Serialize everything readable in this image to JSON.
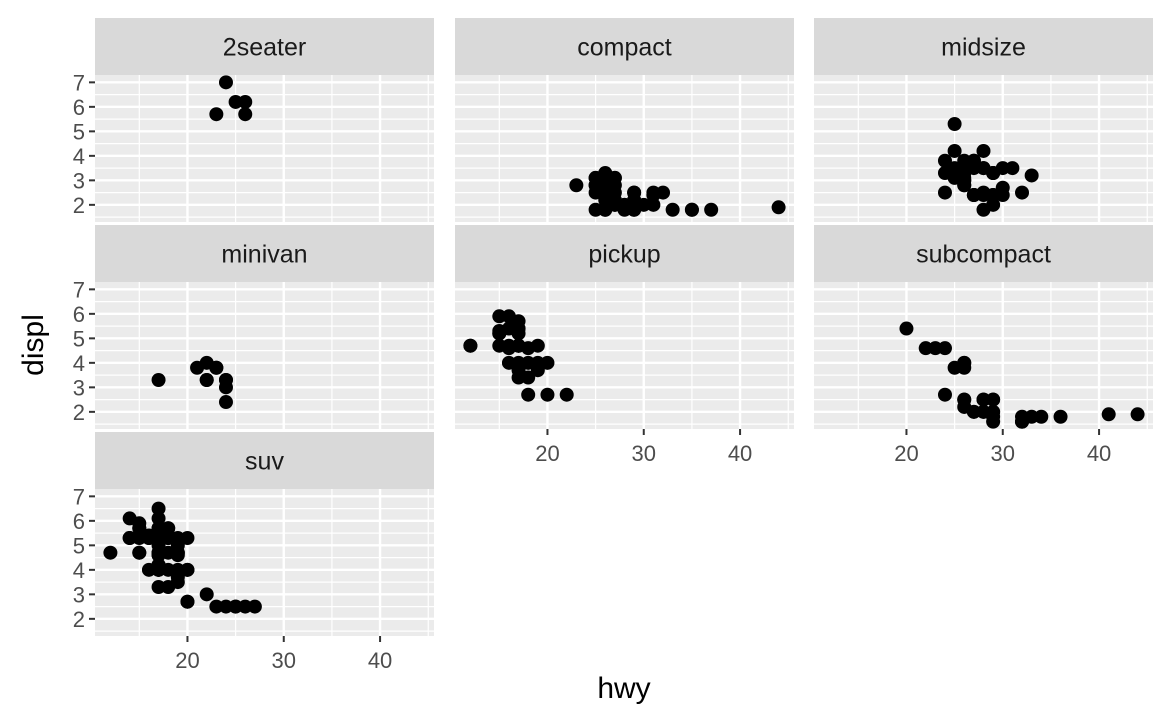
{
  "chart_data": {
    "type": "scatter",
    "xlabel": "hwy",
    "ylabel": "displ",
    "xlim": [
      10.4,
      45.6
    ],
    "ylim": [
      1.3,
      7.3
    ],
    "x_ticks": [
      20,
      30,
      40
    ],
    "y_ticks": [
      2,
      3,
      4,
      5,
      6,
      7
    ],
    "grid": true,
    "facets": [
      {
        "label": "2seater",
        "points": [
          [
            26,
            5.7
          ],
          [
            25,
            6.2
          ],
          [
            26,
            6.2
          ],
          [
            24,
            7.0
          ],
          [
            23,
            5.7
          ]
        ]
      },
      {
        "label": "compact",
        "points": [
          [
            29,
            1.8
          ],
          [
            29,
            1.8
          ],
          [
            31,
            2.0
          ],
          [
            30,
            2.0
          ],
          [
            26,
            2.8
          ],
          [
            26,
            2.8
          ],
          [
            27,
            3.1
          ],
          [
            26,
            1.8
          ],
          [
            25,
            1.8
          ],
          [
            28,
            2.0
          ],
          [
            27,
            2.0
          ],
          [
            25,
            2.8
          ],
          [
            25,
            2.8
          ],
          [
            25,
            3.1
          ],
          [
            25,
            3.1
          ],
          [
            23,
            2.8
          ],
          [
            27,
            3.1
          ],
          [
            29,
            2.2
          ],
          [
            27,
            2.2
          ],
          [
            31,
            2.4
          ],
          [
            31,
            2.4
          ],
          [
            26,
            3.0
          ],
          [
            26,
            3.0
          ],
          [
            26,
            3.3
          ],
          [
            26,
            1.8
          ],
          [
            28,
            1.8
          ],
          [
            29,
            2.0
          ],
          [
            29,
            2.0
          ],
          [
            29,
            2.5
          ],
          [
            29,
            2.5
          ],
          [
            33,
            1.8
          ],
          [
            35,
            1.8
          ],
          [
            37,
            1.8
          ],
          [
            35,
            1.8
          ],
          [
            44,
            1.9
          ],
          [
            29,
            2.0
          ],
          [
            29,
            2.0
          ],
          [
            28,
            2.0
          ],
          [
            29,
            2.0
          ],
          [
            27,
            2.0
          ],
          [
            31,
            2.5
          ],
          [
            32,
            2.5
          ],
          [
            27,
            2.8
          ],
          [
            26,
            2.5
          ],
          [
            26,
            2.2
          ],
          [
            25,
            2.5
          ],
          [
            27,
            2.5
          ]
        ]
      },
      {
        "label": "midsize",
        "points": [
          [
            26,
            2.8
          ],
          [
            25,
            3.1
          ],
          [
            28,
            4.2
          ],
          [
            27,
            2.4
          ],
          [
            27,
            2.4
          ],
          [
            29,
            3.3
          ],
          [
            29,
            3.3
          ],
          [
            28,
            3.5
          ],
          [
            29,
            2.4
          ],
          [
            26,
            3.3
          ],
          [
            26,
            3.5
          ],
          [
            26,
            3.8
          ],
          [
            27,
            3.8
          ],
          [
            25,
            5.3
          ],
          [
            25,
            3.5
          ],
          [
            25,
            3.3
          ],
          [
            26,
            3.0
          ],
          [
            27,
            2.4
          ],
          [
            30,
            2.4
          ],
          [
            32,
            2.5
          ],
          [
            24,
            2.5
          ],
          [
            26,
            2.8
          ],
          [
            26,
            3.1
          ],
          [
            28,
            2.4
          ],
          [
            29,
            2.0
          ],
          [
            29,
            2.4
          ],
          [
            26,
            3.3
          ],
          [
            24,
            3.3
          ],
          [
            27,
            3.5
          ],
          [
            27,
            3.8
          ],
          [
            24,
            3.8
          ],
          [
            30,
            3.5
          ],
          [
            26,
            3.0
          ],
          [
            31,
            3.5
          ],
          [
            28,
            3.5
          ],
          [
            29,
            3.3
          ],
          [
            28,
            2.5
          ],
          [
            25,
            4.2
          ],
          [
            33,
            3.2
          ],
          [
            30,
            2.7
          ],
          [
            28,
            1.8
          ]
        ]
      },
      {
        "label": "minivan",
        "points": [
          [
            17,
            3.3
          ],
          [
            22,
            3.3
          ],
          [
            22,
            3.3
          ],
          [
            21,
            3.8
          ],
          [
            23,
            3.8
          ],
          [
            23,
            3.8
          ],
          [
            22,
            4.0
          ],
          [
            24,
            2.4
          ],
          [
            24,
            3.0
          ],
          [
            24,
            3.3
          ],
          [
            24,
            3.3
          ]
        ]
      },
      {
        "label": "pickup",
        "points": [
          [
            15,
            5.9
          ],
          [
            17,
            4.7
          ],
          [
            16,
            4.7
          ],
          [
            17,
            4.7
          ],
          [
            15,
            5.2
          ],
          [
            17,
            5.2
          ],
          [
            12,
            4.7
          ],
          [
            17,
            5.7
          ],
          [
            16,
            5.9
          ],
          [
            17,
            4.7
          ],
          [
            15,
            4.7
          ],
          [
            17,
            4.7
          ],
          [
            12,
            4.7
          ],
          [
            15,
            5.3
          ],
          [
            16,
            5.4
          ],
          [
            17,
            5.4
          ],
          [
            16,
            4.6
          ],
          [
            17,
            5.4
          ],
          [
            17,
            4.0
          ],
          [
            19,
            4.7
          ],
          [
            17,
            3.4
          ],
          [
            16,
            4.0
          ],
          [
            18,
            4.0
          ],
          [
            18,
            4.6
          ],
          [
            19,
            4.0
          ],
          [
            17,
            3.7
          ],
          [
            15,
            5.2
          ],
          [
            19,
            3.7
          ],
          [
            20,
            4.0
          ],
          [
            22,
            2.7
          ],
          [
            18,
            2.7
          ],
          [
            20,
            2.7
          ],
          [
            18,
            3.4
          ]
        ]
      },
      {
        "label": "subcompact",
        "points": [
          [
            25,
            3.8
          ],
          [
            26,
            3.8
          ],
          [
            26,
            4.0
          ],
          [
            26,
            4.0
          ],
          [
            24,
            4.6
          ],
          [
            23,
            4.6
          ],
          [
            22,
            4.6
          ],
          [
            20,
            5.4
          ],
          [
            24,
            2.7
          ],
          [
            29,
            1.6
          ],
          [
            32,
            1.6
          ],
          [
            32,
            1.6
          ],
          [
            33,
            1.8
          ],
          [
            32,
            1.8
          ],
          [
            32,
            1.6
          ],
          [
            36,
            1.8
          ],
          [
            28,
            2.0
          ],
          [
            29,
            2.0
          ],
          [
            27,
            2.0
          ],
          [
            29,
            2.0
          ],
          [
            29,
            1.8
          ],
          [
            41,
            1.9
          ],
          [
            44,
            1.9
          ],
          [
            29,
            2.5
          ],
          [
            26,
            2.5
          ],
          [
            28,
            2.0
          ],
          [
            29,
            2.5
          ],
          [
            28,
            2.5
          ],
          [
            26,
            2.2
          ],
          [
            26,
            2.5
          ],
          [
            28,
            2.5
          ],
          [
            34,
            1.8
          ],
          [
            27,
            2.0
          ]
        ]
      },
      {
        "label": "suv",
        "points": [
          [
            14,
            5.3
          ],
          [
            14,
            6.1
          ],
          [
            17,
            4.0
          ],
          [
            17,
            4.0
          ],
          [
            15,
            4.7
          ],
          [
            15,
            4.7
          ],
          [
            15,
            5.7
          ],
          [
            17,
            5.3
          ],
          [
            16,
            5.3
          ],
          [
            17,
            4.7
          ],
          [
            15,
            5.9
          ],
          [
            20,
            4.0
          ],
          [
            19,
            4.7
          ],
          [
            17,
            4.7
          ],
          [
            17,
            5.7
          ],
          [
            20,
            5.3
          ],
          [
            19,
            5.3
          ],
          [
            17,
            6.5
          ],
          [
            18,
            3.3
          ],
          [
            17,
            5.3
          ],
          [
            18,
            4.7
          ],
          [
            17,
            5.7
          ],
          [
            12,
            4.7
          ],
          [
            17,
            4.7
          ],
          [
            17,
            4.6
          ],
          [
            17,
            5.4
          ],
          [
            16,
            5.4
          ],
          [
            15,
            5.3
          ],
          [
            18,
            5.3
          ],
          [
            16,
            4.0
          ],
          [
            19,
            4.0
          ],
          [
            19,
            4.6
          ],
          [
            17,
            5.0
          ],
          [
            17,
            4.2
          ],
          [
            17,
            4.2
          ],
          [
            17,
            4.6
          ],
          [
            18,
            5.4
          ],
          [
            18,
            4.0
          ],
          [
            17,
            4.0
          ],
          [
            17,
            3.3
          ],
          [
            20,
            4.0
          ],
          [
            19,
            3.7
          ],
          [
            19,
            3.5
          ],
          [
            22,
            3.0
          ],
          [
            18,
            5.7
          ],
          [
            25,
            2.5
          ],
          [
            24,
            2.5
          ],
          [
            27,
            2.5
          ],
          [
            25,
            2.5
          ],
          [
            26,
            2.5
          ],
          [
            23,
            2.5
          ],
          [
            20,
            2.7
          ],
          [
            20,
            2.7
          ],
          [
            17,
            5.6
          ],
          [
            19,
            4.7
          ],
          [
            18,
            5.7
          ],
          [
            18,
            5.3
          ],
          [
            17,
            6.1
          ],
          [
            16,
            5.3
          ],
          [
            14,
            5.3
          ],
          [
            15,
            5.7
          ],
          [
            19,
            5.0
          ]
        ]
      }
    ]
  }
}
